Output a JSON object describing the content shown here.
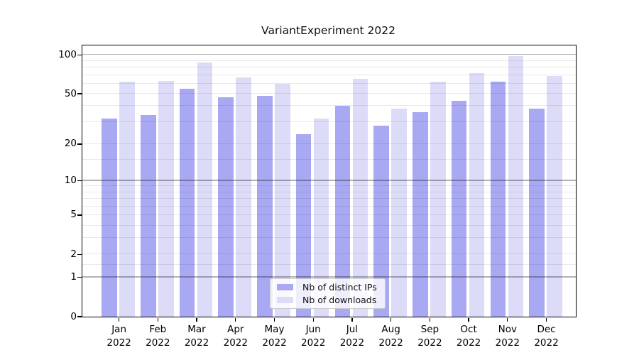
{
  "title": "VariantExperiment 2022",
  "chart_data": {
    "type": "bar",
    "title": "VariantExperiment 2022",
    "categories": [
      "Jan 2022",
      "Feb 2022",
      "Mar 2022",
      "Apr 2022",
      "May 2022",
      "Jun 2022",
      "Jul 2022",
      "Aug 2022",
      "Sep 2022",
      "Oct 2022",
      "Nov 2022",
      "Dec 2022"
    ],
    "x_tick_months": [
      "Jan",
      "Feb",
      "Mar",
      "Apr",
      "May",
      "Jun",
      "Jul",
      "Aug",
      "Sep",
      "Oct",
      "Nov",
      "Dec"
    ],
    "x_tick_year": "2022",
    "series": [
      {
        "name": "Nb of distinct IPs",
        "color": "#a9a9f3",
        "values": [
          32,
          34,
          55,
          47,
          48,
          24,
          40,
          28,
          36,
          44,
          62,
          38
        ]
      },
      {
        "name": "Nb of downloads",
        "color": "#dcdcf9",
        "values": [
          62,
          63,
          87,
          67,
          60,
          32,
          65,
          38,
          62,
          72,
          98,
          69
        ]
      }
    ],
    "xlabel": "",
    "ylabel": "",
    "yscale": "log1p",
    "ylim": [
      0,
      118.5
    ],
    "y_ticks_labeled": [
      0,
      1,
      2,
      5,
      10,
      20,
      50,
      100
    ],
    "y_gridlines_major": [
      1,
      10,
      100
    ],
    "y_gridlines_minor": [
      1.5,
      2,
      3,
      4,
      5,
      6,
      7,
      8,
      9,
      15,
      20,
      30,
      40,
      50,
      60,
      70,
      80,
      90
    ],
    "grid": true,
    "legend_position": "lower center (inside axes)",
    "colors": {
      "distinct_ips": "#a9a9f3",
      "downloads": "#dcdcf9",
      "grid_major": "#b3b3b3",
      "grid_minor": "#e8e8e8",
      "spine": "#000000"
    }
  }
}
